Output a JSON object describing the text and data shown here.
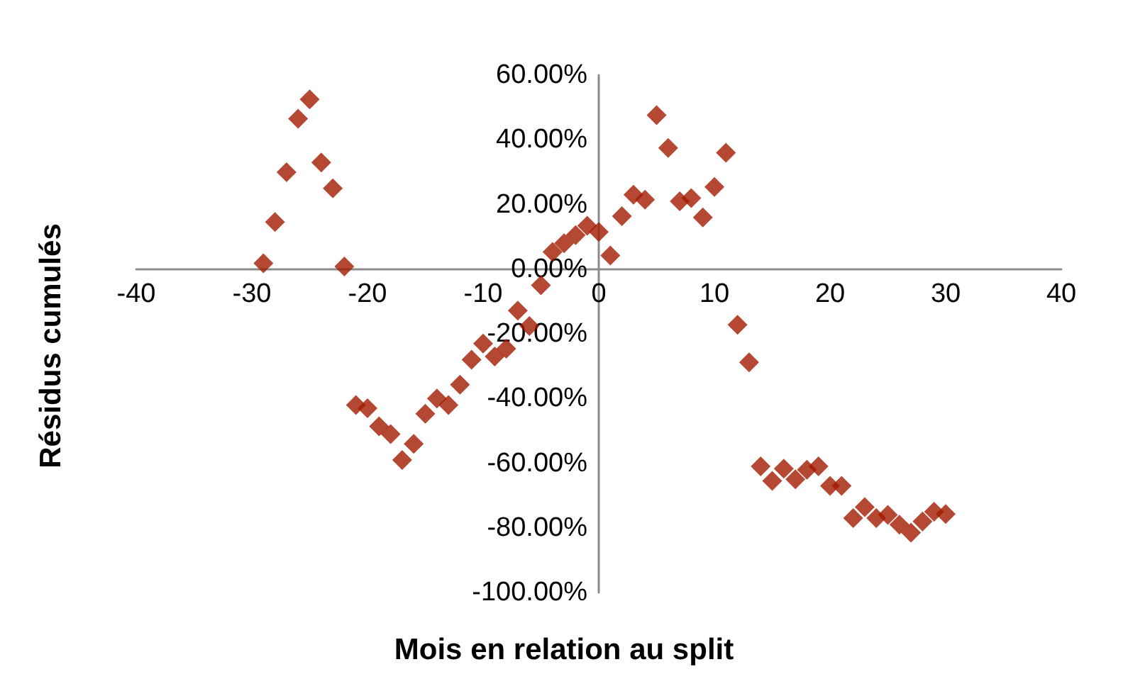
{
  "chart_data": {
    "type": "scatter",
    "xlabel": "Mois en relation au split",
    "ylabel": "Résidus cumulés",
    "x": [
      -29,
      -28,
      -27,
      -26,
      -25,
      -24,
      -23,
      -22,
      -21,
      -20,
      -19,
      -18,
      -17,
      -16,
      -15,
      -14,
      -13,
      -12,
      -11,
      -10,
      -9,
      -8,
      -7,
      -6,
      -5,
      -4,
      -3,
      -2,
      -1,
      0,
      1,
      2,
      3,
      4,
      5,
      6,
      7,
      8,
      9,
      10,
      11,
      12,
      13,
      14,
      15,
      16,
      17,
      18,
      19,
      20,
      21,
      22,
      23,
      24,
      25,
      26,
      27,
      28,
      29,
      30
    ],
    "series": [
      {
        "color": "#a31a00",
        "values": [
          1.8,
          14.6,
          30,
          46.5,
          52.5,
          33,
          25,
          0.8,
          -42,
          -43,
          -48.6,
          -51,
          -59,
          -54,
          -44.7,
          -40,
          -42,
          -35.7,
          -28,
          -23,
          -27,
          -24.6,
          -12.8,
          -17.6,
          -5,
          5.3,
          8,
          10.5,
          13.4,
          11.5,
          4.2,
          16.4,
          23,
          21.5,
          47.6,
          37.5,
          21,
          22,
          16,
          25.4,
          36,
          -17.2,
          -28.8,
          -61,
          -65.5,
          -61.7,
          -65,
          -62,
          -61,
          -67,
          -67,
          -77,
          -73.6,
          -77,
          -76,
          -79,
          -81.5,
          -78,
          -75,
          -75.7
        ]
      }
    ],
    "xlim": [
      -40,
      40
    ],
    "xticks": [
      -40,
      -30,
      -20,
      -10,
      0,
      10,
      20,
      30,
      40
    ],
    "ylim": [
      -100,
      60
    ],
    "yticks": [
      {
        "value": -100,
        "label": "-100.00%"
      },
      {
        "value": -80,
        "label": "-80.00%"
      },
      {
        "value": -60,
        "label": "-60.00%"
      },
      {
        "value": -40,
        "label": "-40.00%"
      },
      {
        "value": -20,
        "label": "-20.00%"
      },
      {
        "value": 0,
        "label": "0.00%"
      },
      {
        "value": 20,
        "label": "20.00%"
      },
      {
        "value": 40,
        "label": "40.00%"
      },
      {
        "value": 60,
        "label": "60.00%"
      }
    ],
    "marker": "diamond",
    "grid": false
  }
}
